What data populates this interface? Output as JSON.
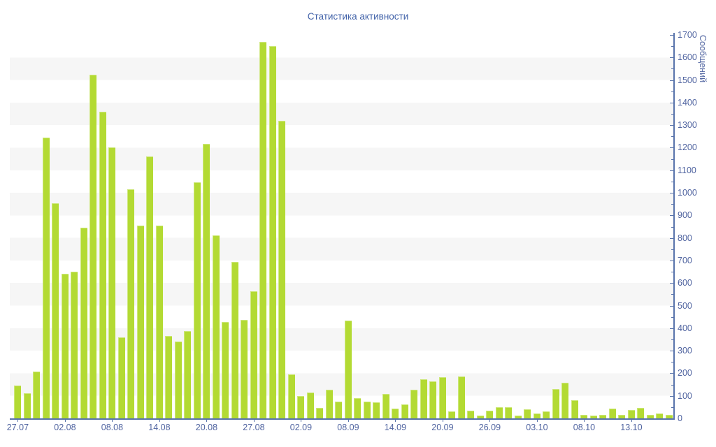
{
  "title": "Статистика активности",
  "colors": {
    "bar": "#b3da33",
    "axis": "#5873ab",
    "tick_label": "#5064a0",
    "title_text": "#4061a8",
    "stripe_band": "#f6f6f6",
    "background": "#ffffff"
  },
  "y_axis": {
    "title": "Сообщений",
    "tick_labels": [
      "0",
      "100",
      "200",
      "300",
      "400",
      "500",
      "600",
      "700",
      "800",
      "900",
      "1000",
      "1100",
      "1200",
      "1300",
      "1400",
      "1500",
      "1600",
      "1700"
    ]
  },
  "chart_data": {
    "type": "bar",
    "title": "Статистика активности",
    "xlabel": "",
    "ylabel": "Сообщений",
    "ylim": [
      0,
      1700
    ],
    "y_tick_step": 100,
    "y_minor_tick_step": 50,
    "grid": "alternating horizontal gray bands every 100 units",
    "legend": false,
    "y_axis_position": "right",
    "x_tick_labels": [
      "27.07",
      "02.08",
      "08.08",
      "14.08",
      "20.08",
      "27.08",
      "02.09",
      "08.09",
      "14.09",
      "20.09",
      "26.09",
      "03.10",
      "08.10",
      "13.10"
    ],
    "x_tick_bar_indices": [
      0,
      5,
      10,
      15,
      20,
      25,
      30,
      35,
      40,
      45,
      50,
      55,
      60,
      65
    ],
    "values": [
      147,
      113,
      209,
      1245,
      953,
      640,
      650,
      845,
      1522,
      1359,
      1200,
      360,
      1015,
      856,
      1160,
      855,
      365,
      340,
      387,
      1047,
      1216,
      810,
      428,
      695,
      436,
      564,
      1670,
      1649,
      1320,
      196,
      100,
      114,
      45,
      126,
      73,
      434,
      90,
      75,
      70,
      108,
      42,
      62,
      127,
      173,
      163,
      183,
      30,
      187,
      35,
      12,
      33,
      50,
      51,
      13,
      39,
      23,
      32,
      129,
      158,
      80,
      17,
      13,
      15,
      42,
      17,
      38,
      47,
      16,
      21,
      16
    ]
  }
}
